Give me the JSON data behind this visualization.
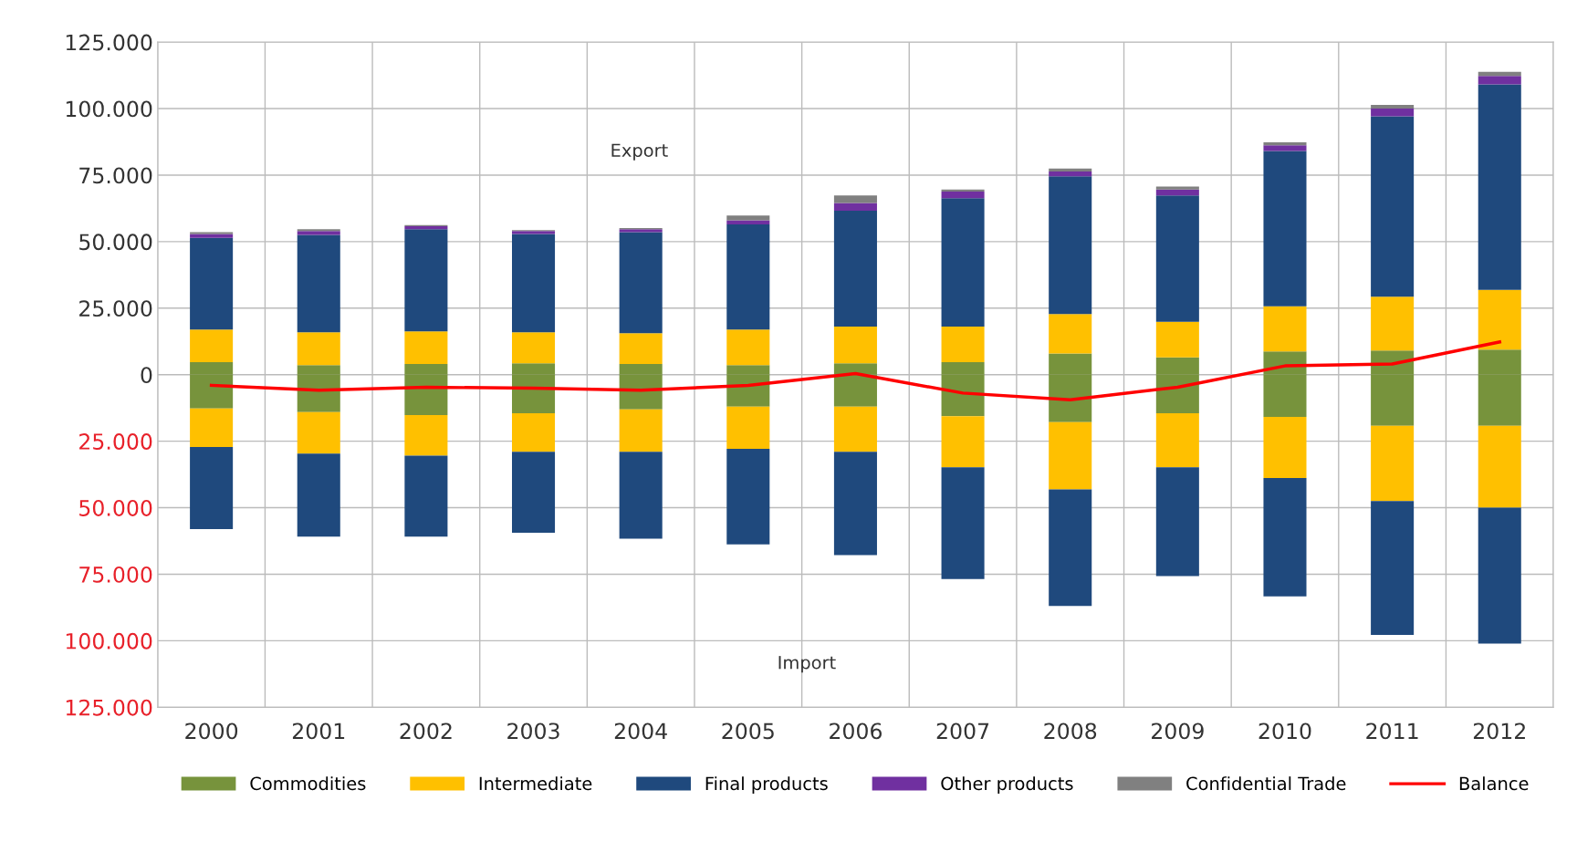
{
  "chart_data": {
    "type": "bar",
    "stacked": true,
    "categories": [
      "2000",
      "2001",
      "2002",
      "2003",
      "2004",
      "2005",
      "2006",
      "2007",
      "2008",
      "2009",
      "2010",
      "2011",
      "2012"
    ],
    "series": [
      {
        "name": "Commodities",
        "color": "#77933c",
        "values": [
          4700,
          3600,
          4000,
          4300,
          4000,
          3600,
          4300,
          4700,
          8000,
          6500,
          8700,
          9100,
          9400
        ]
      },
      {
        "name": "Intermediate",
        "color": "#ffc000",
        "values": [
          12300,
          12300,
          12300,
          11600,
          11600,
          13400,
          13800,
          13400,
          14800,
          13400,
          17000,
          20200,
          22500
        ]
      },
      {
        "name": "Final products",
        "color": "#1f497d",
        "values": [
          34400,
          36600,
          38400,
          37000,
          38000,
          39500,
          43500,
          48200,
          51800,
          47500,
          58400,
          67800,
          77200
        ]
      },
      {
        "name": "Other products",
        "color": "#7030a0",
        "values": [
          1500,
          1500,
          1100,
          1100,
          1100,
          1500,
          2900,
          2500,
          1800,
          2200,
          2100,
          2900,
          3200
        ]
      },
      {
        "name": "Confidential Trade",
        "color": "#808080",
        "values": [
          700,
          700,
          400,
          300,
          400,
          1800,
          2900,
          800,
          1100,
          1100,
          1100,
          1400,
          1500
        ]
      },
      {
        "color": "#77933c",
        "values": [
          -12700,
          -14100,
          -15200,
          -14500,
          -13000,
          -12000,
          -12000,
          -15600,
          -17800,
          -14500,
          -15900,
          -19200,
          -19200
        ]
      },
      {
        "color": "#ffc000",
        "values": [
          -14500,
          -15600,
          -15200,
          -14500,
          -16000,
          -15900,
          -17000,
          -19200,
          -25300,
          -20300,
          -22900,
          -28300,
          -30800
        ]
      },
      {
        "color": "#1f497d",
        "values": [
          -30800,
          -31200,
          -30500,
          -30400,
          -32600,
          -35900,
          -38800,
          -42000,
          -43800,
          -40900,
          -44500,
          -50300,
          -51100
        ]
      },
      {
        "name": "Balance",
        "type": "line",
        "color": "#ff0000",
        "values": [
          -4000,
          -5800,
          -4700,
          -5100,
          -5800,
          -4000,
          400,
          -6900,
          -9400,
          -4700,
          3300,
          4000,
          12300
        ]
      }
    ],
    "ylim": [
      -125000,
      125000
    ],
    "yticks": [
      {
        "value": -125000,
        "label": "125.000"
      },
      {
        "value": -100000,
        "label": "100.000"
      },
      {
        "value": -75000,
        "label": "75.000"
      },
      {
        "value": -50000,
        "label": "50.000"
      },
      {
        "value": -25000,
        "label": "25.000"
      },
      0,
      {
        "value": 25000,
        "label": "25.000"
      },
      {
        "value": 50000,
        "label": "50.000"
      },
      {
        "value": 75000,
        "label": "75.000"
      },
      {
        "value": 100000,
        "label": "100.000"
      },
      {
        "value": 125000,
        "label": "125.000"
      }
    ],
    "annotations": [
      "Export",
      "Import"
    ],
    "grid": true,
    "legend": "bottom"
  }
}
